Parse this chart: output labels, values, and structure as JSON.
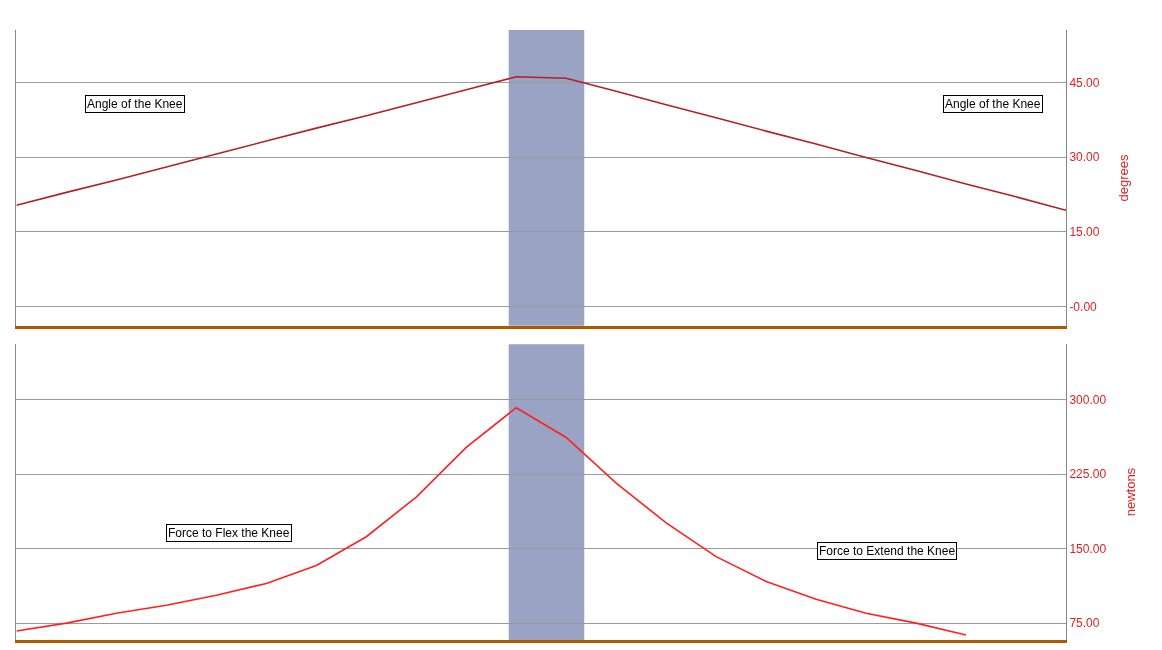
{
  "chart_data": [
    {
      "type": "line",
      "categories": [
        null,
        null,
        null,
        null,
        null,
        null,
        null,
        null,
        null,
        null,
        null,
        null,
        null,
        null,
        null,
        null,
        null,
        null,
        null,
        null,
        null,
        null
      ],
      "series": [
        {
          "color": "#b22222",
          "values": [
            20.3,
            22.9,
            25.4,
            28.0,
            30.6,
            33.2,
            35.8,
            38.3,
            40.9,
            43.5,
            46.1,
            45.8,
            43.2,
            40.5,
            37.9,
            35.2,
            32.6,
            29.9,
            27.3,
            24.6,
            22.0,
            19.3
          ]
        }
      ],
      "ylabel": "degrees",
      "ylim": [
        -3.9,
        55.5
      ],
      "yticks": [
        {
          "value": 0,
          "label": "-0.00"
        },
        {
          "value": 15,
          "label": "15.00"
        },
        {
          "value": 30,
          "label": "30.00"
        },
        {
          "value": 45,
          "label": "45.00"
        }
      ],
      "grid": "y",
      "tick_labels": "y",
      "annotations": [
        "Angle of the Knee",
        "Angle of the Knee"
      ]
    },
    {
      "type": "line",
      "categories": [
        null,
        null,
        null,
        null,
        null,
        null,
        null,
        null,
        null,
        null,
        null,
        null,
        null,
        null,
        null,
        null,
        null,
        null,
        null,
        null,
        null,
        null
      ],
      "series": [
        {
          "color": "#ff2020",
          "values": [
            67,
            75,
            85,
            93,
            103,
            115,
            133,
            162,
            202,
            252,
            292,
            262,
            216,
            176,
            142,
            117,
            99,
            85,
            75,
            63,
            null,
            null
          ]
        }
      ],
      "ylabel": "newtons",
      "ylim": [
        58,
        356
      ],
      "yticks": [
        {
          "value": 75,
          "label": "75.00"
        },
        {
          "value": 150,
          "label": "150.00"
        },
        {
          "value": 225,
          "label": "225.00"
        },
        {
          "value": 300,
          "label": "300.00"
        }
      ],
      "grid": "y",
      "tick_labels": "y",
      "annotations": [
        "Force to Flex the Knee",
        "Force to Extend the Knee"
      ]
    }
  ]
}
